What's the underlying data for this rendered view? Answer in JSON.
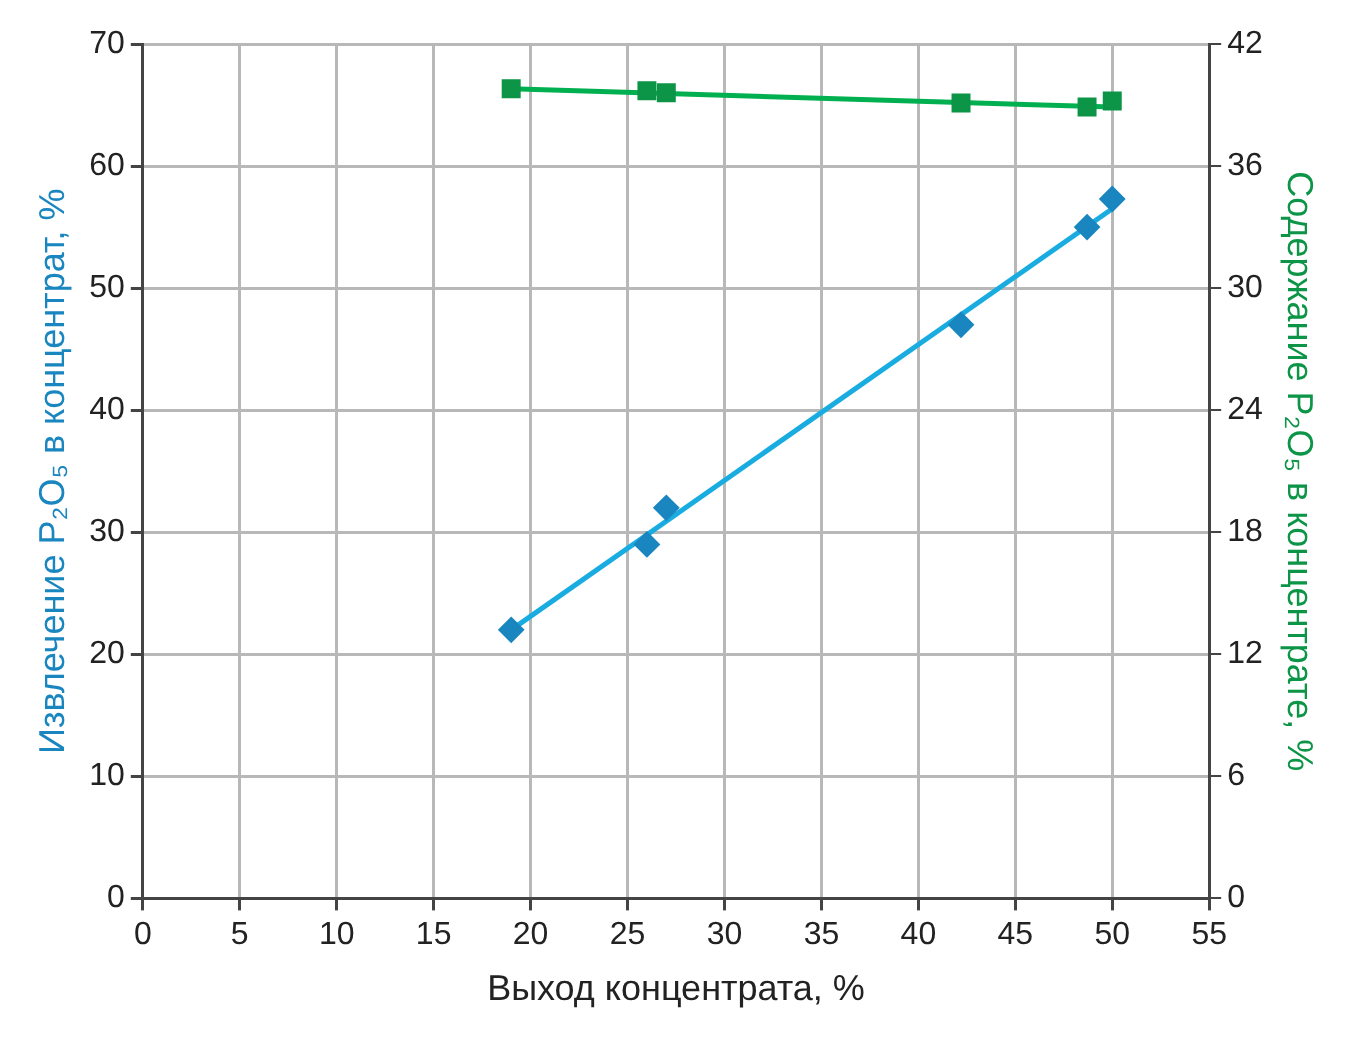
{
  "chart_data": {
    "type": "scatter",
    "xlabel": "Выход концентрата, %",
    "ylabel": "Извлечение P₂O₅ в концентрат, %",
    "y2label": "Содержание P₂O₅ в концентрате, %",
    "xlim": [
      0,
      55
    ],
    "xticks": [
      0,
      5,
      10,
      15,
      20,
      25,
      30,
      35,
      40,
      45,
      50,
      55
    ],
    "ylim": [
      0,
      70
    ],
    "yticks": [
      0,
      10,
      20,
      30,
      40,
      50,
      60,
      70
    ],
    "y2lim": [
      0,
      42
    ],
    "y2ticks": [
      0,
      6,
      12,
      18,
      24,
      30,
      36,
      42
    ],
    "grid": true,
    "legend": false,
    "series": [
      {
        "color": "#1a86c0",
        "marker": "diamond",
        "x": [
          19,
          26,
          27,
          42.2,
          48.7,
          50
        ],
        "values": [
          22,
          29,
          32,
          47,
          55,
          57.3
        ]
      },
      {
        "type": "line",
        "color": "#19ace0",
        "marker": "none",
        "x": [
          19,
          50
        ],
        "values": [
          22,
          56.5
        ]
      },
      {
        "color": "#0c9447",
        "marker": "square",
        "axis": "y2",
        "x": [
          19,
          26,
          27,
          42.2,
          48.7,
          50
        ],
        "values": [
          39.8,
          39.7,
          39.6,
          39.1,
          38.9,
          39.2
        ]
      },
      {
        "type": "line",
        "color": "#00b050",
        "marker": "none",
        "axis": "y2",
        "x": [
          19,
          50
        ],
        "values": [
          39.8,
          38.9
        ]
      }
    ]
  }
}
